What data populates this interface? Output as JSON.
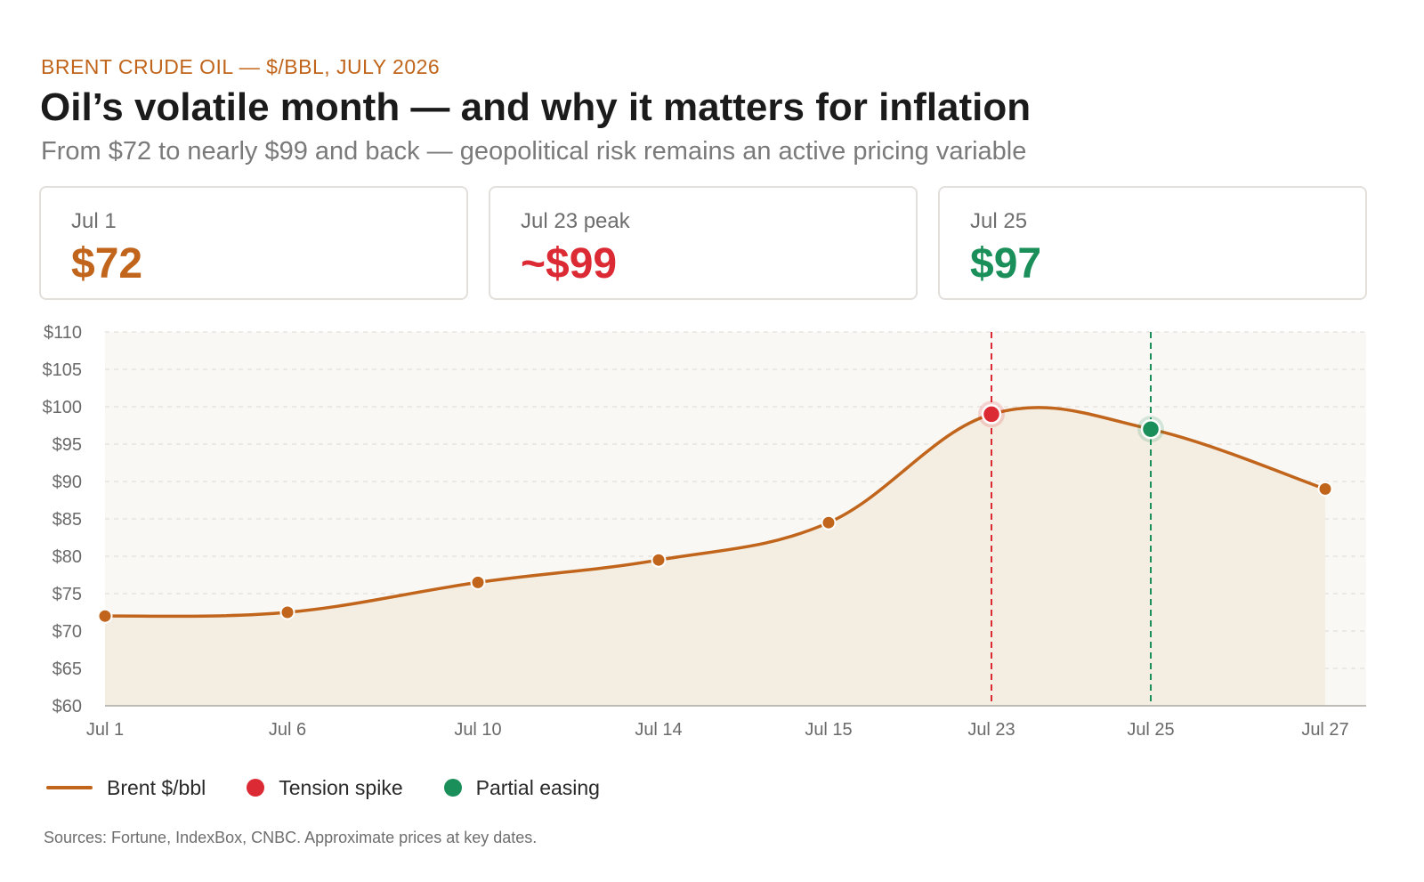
{
  "header": {
    "kicker": "BRENT CRUDE OIL — $/BBL, JULY 2026",
    "title": "Oil’s volatile month — and why it matters for inflation",
    "subtitle": "From $72 to nearly $99 and back — geopolitical risk remains an active pricing variable"
  },
  "cards": [
    {
      "label": "Jul 1",
      "value": "$72",
      "color": "#c0651b"
    },
    {
      "label": "Jul 23 peak",
      "value": "~$99",
      "color": "#dc2a34"
    },
    {
      "label": "Jul 25",
      "value": "$97",
      "color": "#1a8f5a"
    }
  ],
  "legend": {
    "series": "Brent $/bbl",
    "spike": "Tension spike",
    "easing": "Partial easing"
  },
  "source": "Sources: Fortune, IndexBox, CNBC. Approximate prices at key dates.",
  "colors": {
    "line": "#c0651b",
    "spike": "#dc2a34",
    "easing": "#1a8f5a",
    "plot_bg": "#faf8f4",
    "area": "#f4eee2"
  },
  "chart_data": {
    "type": "line",
    "categories": [
      "Jul 1",
      "Jul 6",
      "Jul 10",
      "Jul 14",
      "Jul 15",
      "Jul 23",
      "Jul 25",
      "Jul 27"
    ],
    "series": [
      {
        "name": "Brent $/bbl",
        "values": [
          72,
          72.5,
          76.5,
          79.5,
          84.5,
          99,
          97,
          89
        ]
      }
    ],
    "y_ticks": [
      "$60",
      "$65",
      "$70",
      "$75",
      "$80",
      "$85",
      "$90",
      "$95",
      "$100",
      "$105",
      "$110"
    ],
    "ylim": [
      60,
      110
    ],
    "highlights": [
      {
        "label": "Tension spike",
        "category": "Jul 23",
        "value": 99
      },
      {
        "label": "Partial easing",
        "category": "Jul 25",
        "value": 97
      }
    ],
    "grid": true,
    "area_fill": true,
    "legend_position": "bottom-left"
  }
}
